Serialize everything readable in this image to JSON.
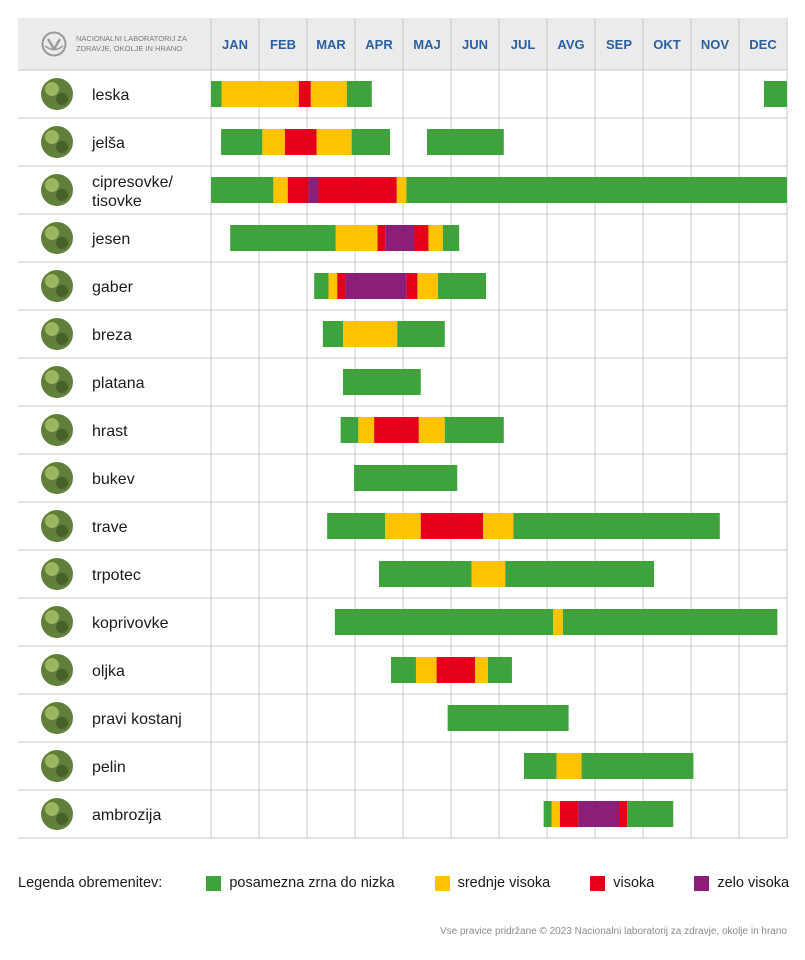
{
  "header": {
    "org_line1": "NACIONALNI LABORATORIJ ZA",
    "org_line2": "ZDRAVJE, OKOLJE IN HRANO",
    "logo_icon": "nlzoh-logo-icon"
  },
  "colors": {
    "low": "#3ea33c",
    "medium": "#fdc300",
    "high": "#e2001a",
    "very_high": "#8a1e78",
    "header_bg": "#ebebeb",
    "grid": "#c8c8c8",
    "month_text": "#2a5fa0"
  },
  "chart_data": {
    "type": "gantt",
    "title": "",
    "categories": [
      "JAN",
      "FEB",
      "MAR",
      "APR",
      "MAJ",
      "JUN",
      "JUL",
      "AVG",
      "SEP",
      "OKT",
      "NOV",
      "DEC"
    ],
    "x_unit": "month (0 = start of January, 12 = end of December)",
    "levels": {
      "low": "posamezna zrna do nizka",
      "medium": "srednje visoka",
      "high": "visoka",
      "very_high": "zelo visoka"
    },
    "series": [
      {
        "name": "leska",
        "icon": "hazel-photo-icon",
        "segments": [
          {
            "start": 0.0,
            "end": 0.22,
            "level": "low"
          },
          {
            "start": 0.22,
            "end": 1.83,
            "level": "medium"
          },
          {
            "start": 1.83,
            "end": 2.08,
            "level": "high"
          },
          {
            "start": 2.08,
            "end": 2.83,
            "level": "medium"
          },
          {
            "start": 2.83,
            "end": 3.35,
            "level": "low"
          },
          {
            "start": 11.52,
            "end": 12.0,
            "level": "low"
          }
        ]
      },
      {
        "name": "jelša",
        "icon": "alder-photo-icon",
        "segments": [
          {
            "start": 0.21,
            "end": 1.07,
            "level": "low"
          },
          {
            "start": 1.07,
            "end": 1.54,
            "level": "medium"
          },
          {
            "start": 1.54,
            "end": 2.2,
            "level": "high"
          },
          {
            "start": 2.2,
            "end": 2.93,
            "level": "medium"
          },
          {
            "start": 2.93,
            "end": 3.73,
            "level": "low"
          },
          {
            "start": 4.5,
            "end": 6.1,
            "level": "low"
          }
        ]
      },
      {
        "name": "cipresovke/",
        "name2": "tisovke",
        "icon": "cypress-photo-icon",
        "segments": [
          {
            "start": 0.0,
            "end": 1.3,
            "level": "low"
          },
          {
            "start": 1.3,
            "end": 1.6,
            "level": "medium"
          },
          {
            "start": 1.6,
            "end": 2.03,
            "level": "high"
          },
          {
            "start": 2.03,
            "end": 2.23,
            "level": "very_high"
          },
          {
            "start": 2.23,
            "end": 3.87,
            "level": "high"
          },
          {
            "start": 3.87,
            "end": 4.07,
            "level": "medium"
          },
          {
            "start": 4.07,
            "end": 12.0,
            "level": "low"
          }
        ]
      },
      {
        "name": "jesen",
        "icon": "ash-photo-icon",
        "segments": [
          {
            "start": 0.4,
            "end": 2.6,
            "level": "low"
          },
          {
            "start": 2.6,
            "end": 3.47,
            "level": "medium"
          },
          {
            "start": 3.47,
            "end": 3.63,
            "level": "high"
          },
          {
            "start": 3.63,
            "end": 4.23,
            "level": "very_high"
          },
          {
            "start": 4.23,
            "end": 4.53,
            "level": "high"
          },
          {
            "start": 4.53,
            "end": 4.83,
            "level": "medium"
          },
          {
            "start": 4.83,
            "end": 5.17,
            "level": "low"
          }
        ]
      },
      {
        "name": "gaber",
        "icon": "hornbeam-photo-icon",
        "segments": [
          {
            "start": 2.15,
            "end": 2.45,
            "level": "low"
          },
          {
            "start": 2.45,
            "end": 2.63,
            "level": "medium"
          },
          {
            "start": 2.63,
            "end": 2.8,
            "level": "high"
          },
          {
            "start": 2.8,
            "end": 4.07,
            "level": "very_high"
          },
          {
            "start": 4.07,
            "end": 4.3,
            "level": "high"
          },
          {
            "start": 4.3,
            "end": 4.73,
            "level": "medium"
          },
          {
            "start": 4.73,
            "end": 5.73,
            "level": "low"
          }
        ]
      },
      {
        "name": "breza",
        "icon": "birch-photo-icon",
        "segments": [
          {
            "start": 2.33,
            "end": 2.75,
            "level": "low"
          },
          {
            "start": 2.75,
            "end": 3.88,
            "level": "medium"
          },
          {
            "start": 3.88,
            "end": 4.87,
            "level": "low"
          }
        ]
      },
      {
        "name": "platana",
        "icon": "plane-tree-photo-icon",
        "segments": [
          {
            "start": 2.75,
            "end": 4.37,
            "level": "low"
          }
        ]
      },
      {
        "name": "hrast",
        "icon": "oak-photo-icon",
        "segments": [
          {
            "start": 2.7,
            "end": 3.07,
            "level": "low"
          },
          {
            "start": 3.07,
            "end": 3.4,
            "level": "medium"
          },
          {
            "start": 3.4,
            "end": 4.33,
            "level": "high"
          },
          {
            "start": 4.33,
            "end": 4.87,
            "level": "medium"
          },
          {
            "start": 4.87,
            "end": 6.1,
            "level": "low"
          }
        ]
      },
      {
        "name": "bukev",
        "icon": "beech-photo-icon",
        "segments": [
          {
            "start": 2.98,
            "end": 5.13,
            "level": "low"
          }
        ]
      },
      {
        "name": "trave",
        "icon": "grass-photo-icon",
        "segments": [
          {
            "start": 2.42,
            "end": 3.63,
            "level": "low"
          },
          {
            "start": 3.63,
            "end": 4.37,
            "level": "medium"
          },
          {
            "start": 4.37,
            "end": 5.67,
            "level": "high"
          },
          {
            "start": 5.67,
            "end": 6.3,
            "level": "medium"
          },
          {
            "start": 6.3,
            "end": 10.6,
            "level": "low"
          }
        ]
      },
      {
        "name": "trpotec",
        "icon": "plantain-photo-icon",
        "segments": [
          {
            "start": 3.5,
            "end": 5.43,
            "level": "low"
          },
          {
            "start": 5.43,
            "end": 6.13,
            "level": "medium"
          },
          {
            "start": 6.13,
            "end": 9.23,
            "level": "low"
          }
        ]
      },
      {
        "name": "koprivovke",
        "icon": "nettle-photo-icon",
        "segments": [
          {
            "start": 2.58,
            "end": 7.13,
            "level": "low"
          },
          {
            "start": 7.13,
            "end": 7.33,
            "level": "medium"
          },
          {
            "start": 7.33,
            "end": 11.8,
            "level": "low"
          }
        ]
      },
      {
        "name": "oljka",
        "icon": "olive-photo-icon",
        "segments": [
          {
            "start": 3.75,
            "end": 4.27,
            "level": "low"
          },
          {
            "start": 4.27,
            "end": 4.7,
            "level": "medium"
          },
          {
            "start": 4.7,
            "end": 5.5,
            "level": "high"
          },
          {
            "start": 5.5,
            "end": 5.77,
            "level": "medium"
          },
          {
            "start": 5.77,
            "end": 6.27,
            "level": "low"
          }
        ]
      },
      {
        "name": "pravi kostanj",
        "icon": "chestnut-photo-icon",
        "segments": [
          {
            "start": 4.93,
            "end": 7.45,
            "level": "low"
          }
        ]
      },
      {
        "name": "pelin",
        "icon": "mugwort-photo-icon",
        "segments": [
          {
            "start": 6.52,
            "end": 7.2,
            "level": "low"
          },
          {
            "start": 7.2,
            "end": 7.72,
            "level": "medium"
          },
          {
            "start": 7.72,
            "end": 10.05,
            "level": "low"
          }
        ]
      },
      {
        "name": "ambrozija",
        "icon": "ragweed-photo-icon",
        "segments": [
          {
            "start": 6.93,
            "end": 7.1,
            "level": "low"
          },
          {
            "start": 7.1,
            "end": 7.27,
            "level": "medium"
          },
          {
            "start": 7.27,
            "end": 7.65,
            "level": "high"
          },
          {
            "start": 7.65,
            "end": 8.5,
            "level": "very_high"
          },
          {
            "start": 8.5,
            "end": 8.67,
            "level": "high"
          },
          {
            "start": 8.67,
            "end": 9.63,
            "level": "low"
          }
        ]
      }
    ]
  },
  "legend": {
    "title": "Legenda obremenitev:",
    "items": [
      {
        "level": "low",
        "label": "posamezna zrna do nizka"
      },
      {
        "level": "medium",
        "label": "srednje visoka"
      },
      {
        "level": "high",
        "label": "visoka"
      },
      {
        "level": "very_high",
        "label": "zelo visoka"
      }
    ]
  },
  "footer": {
    "copyright": "Vse pravice pridržane © 2023 Nacionalni laboratorij za zdravje, okolje in hrano"
  }
}
